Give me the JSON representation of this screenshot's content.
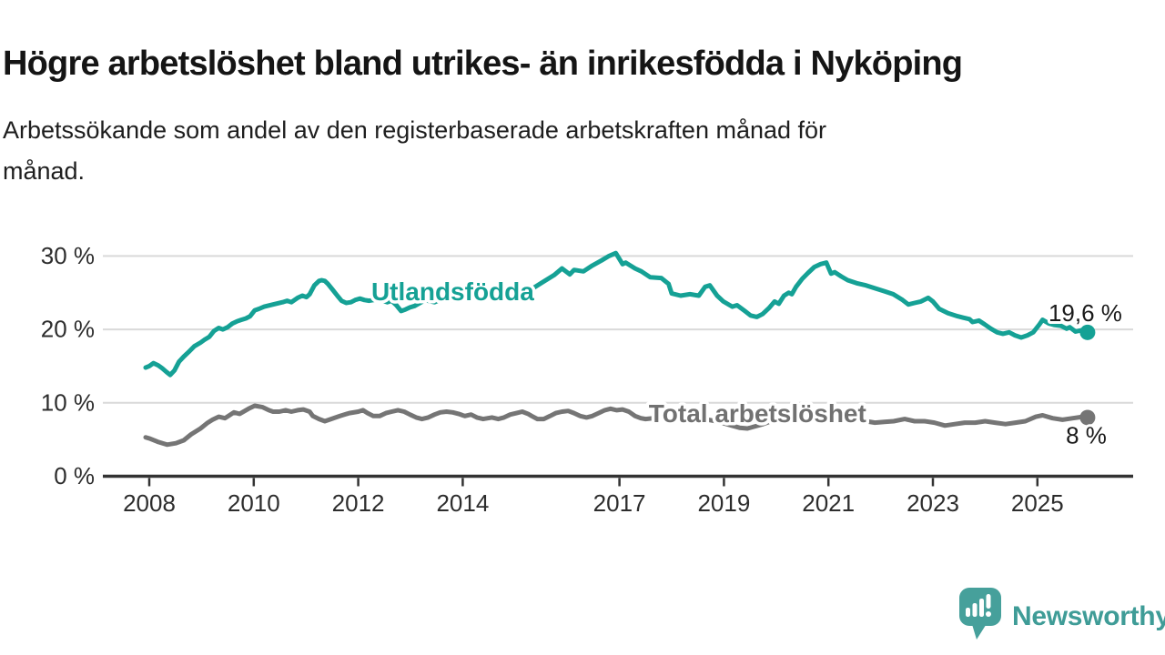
{
  "title": "Högre arbetslöshet bland utrikes- än inrikesfödda i Nyköping",
  "subtitle_lines": [
    "Arbetssökande som andel av den registerbaserade arbetskraften månad för",
    "månad."
  ],
  "logo": {
    "text": "Newsworthy",
    "icon": "speech-bubble-bar-chart",
    "color": "#46a09b"
  },
  "colors": {
    "foreign_series": "#15a195",
    "total_series": "#757575",
    "total_label": "#717171",
    "grid": "#d9d9d9",
    "axis": "#333333",
    "tick_text": "#2d2d2d",
    "annotation_text": "#1a1a1a",
    "background": "#ffffff"
  },
  "chart_data": {
    "type": "line",
    "unit": "%",
    "grid": "horizontal",
    "legend_position": "inline-labels",
    "xlim": [
      2007.1,
      2026.9
    ],
    "ylim": [
      0,
      31
    ],
    "x_ticks": [
      {
        "label": "2008",
        "value": 2008
      },
      {
        "label": "2010",
        "value": 2010
      },
      {
        "label": "2012",
        "value": 2012
      },
      {
        "label": "2014",
        "value": 2014
      },
      {
        "label": "2017",
        "value": 2017
      },
      {
        "label": "2019",
        "value": 2019
      },
      {
        "label": "2021",
        "value": 2021
      },
      {
        "label": "2023",
        "value": 2023
      },
      {
        "label": "2025",
        "value": 2025
      }
    ],
    "y_ticks": [
      {
        "label": "0 %",
        "value": 0
      },
      {
        "label": "10 %",
        "value": 10
      },
      {
        "label": "20 %",
        "value": 20
      },
      {
        "label": "30 %",
        "value": 30
      }
    ],
    "series": [
      {
        "name": "Utlandsfödda",
        "color": "#15a195",
        "end_label": "19,6 %",
        "label_pos": [
          2012.25,
          24.0
        ],
        "points": [
          [
            2007.93,
            14.8
          ],
          [
            2008.0,
            15.0
          ],
          [
            2008.08,
            15.4
          ],
          [
            2008.17,
            15.1
          ],
          [
            2008.25,
            14.7
          ],
          [
            2008.33,
            14.2
          ],
          [
            2008.4,
            13.8
          ],
          [
            2008.48,
            14.4
          ],
          [
            2008.57,
            15.6
          ],
          [
            2008.66,
            16.3
          ],
          [
            2008.75,
            16.9
          ],
          [
            2008.86,
            17.7
          ],
          [
            2008.98,
            18.2
          ],
          [
            2009.06,
            18.6
          ],
          [
            2009.15,
            19.0
          ],
          [
            2009.24,
            19.8
          ],
          [
            2009.33,
            20.2
          ],
          [
            2009.41,
            20.0
          ],
          [
            2009.5,
            20.3
          ],
          [
            2009.59,
            20.8
          ],
          [
            2009.68,
            21.1
          ],
          [
            2009.76,
            21.3
          ],
          [
            2009.85,
            21.5
          ],
          [
            2009.93,
            21.8
          ],
          [
            2010.02,
            22.6
          ],
          [
            2010.1,
            22.8
          ],
          [
            2010.2,
            23.1
          ],
          [
            2010.37,
            23.4
          ],
          [
            2010.55,
            23.7
          ],
          [
            2010.64,
            23.9
          ],
          [
            2010.72,
            23.7
          ],
          [
            2010.84,
            24.3
          ],
          [
            2010.93,
            24.6
          ],
          [
            2011.01,
            24.4
          ],
          [
            2011.07,
            24.8
          ],
          [
            2011.16,
            26.0
          ],
          [
            2011.25,
            26.6
          ],
          [
            2011.3,
            26.7
          ],
          [
            2011.36,
            26.6
          ],
          [
            2011.42,
            26.2
          ],
          [
            2011.51,
            25.4
          ],
          [
            2011.6,
            24.6
          ],
          [
            2011.68,
            23.9
          ],
          [
            2011.77,
            23.6
          ],
          [
            2011.86,
            23.7
          ],
          [
            2011.94,
            24.0
          ],
          [
            2012.03,
            24.2
          ],
          [
            2012.12,
            24.0
          ],
          [
            2012.21,
            23.9
          ],
          [
            2012.29,
            24.0
          ],
          [
            2012.38,
            24.2
          ],
          [
            2012.47,
            23.9
          ],
          [
            2012.56,
            23.7
          ],
          [
            2012.64,
            23.9
          ],
          [
            2012.73,
            23.3
          ],
          [
            2012.82,
            22.5
          ],
          [
            2012.9,
            22.7
          ],
          [
            2012.99,
            23.0
          ],
          [
            2013.08,
            23.2
          ],
          [
            2013.28,
            24.0
          ],
          [
            2013.46,
            23.7
          ],
          [
            2013.63,
            24.2
          ],
          [
            2013.81,
            24.0
          ],
          [
            2013.98,
            24.4
          ],
          [
            2014.16,
            24.2
          ],
          [
            2014.33,
            24.6
          ],
          [
            2014.51,
            24.4
          ],
          [
            2014.7,
            24.8
          ],
          [
            2014.9,
            25.2
          ],
          [
            2015.1,
            25.6
          ],
          [
            2015.3,
            25.4
          ],
          [
            2015.5,
            26.3
          ],
          [
            2015.75,
            27.4
          ],
          [
            2015.9,
            28.3
          ],
          [
            2016.05,
            27.5
          ],
          [
            2016.13,
            28.1
          ],
          [
            2016.31,
            27.9
          ],
          [
            2016.48,
            28.7
          ],
          [
            2016.66,
            29.4
          ],
          [
            2016.8,
            30.0
          ],
          [
            2016.93,
            30.4
          ],
          [
            2017.06,
            28.9
          ],
          [
            2017.12,
            29.1
          ],
          [
            2017.3,
            28.3
          ],
          [
            2017.42,
            27.9
          ],
          [
            2017.59,
            27.1
          ],
          [
            2017.8,
            27.0
          ],
          [
            2017.94,
            26.2
          ],
          [
            2018.0,
            24.9
          ],
          [
            2018.17,
            24.6
          ],
          [
            2018.35,
            24.8
          ],
          [
            2018.52,
            24.6
          ],
          [
            2018.64,
            25.8
          ],
          [
            2018.73,
            26.0
          ],
          [
            2018.87,
            24.6
          ],
          [
            2018.99,
            23.8
          ],
          [
            2019.16,
            23.1
          ],
          [
            2019.25,
            23.3
          ],
          [
            2019.4,
            22.5
          ],
          [
            2019.51,
            21.9
          ],
          [
            2019.63,
            21.7
          ],
          [
            2019.74,
            22.1
          ],
          [
            2019.86,
            22.9
          ],
          [
            2019.97,
            23.8
          ],
          [
            2020.05,
            23.5
          ],
          [
            2020.15,
            24.6
          ],
          [
            2020.24,
            25.0
          ],
          [
            2020.3,
            24.8
          ],
          [
            2020.38,
            25.8
          ],
          [
            2020.5,
            26.9
          ],
          [
            2020.61,
            27.7
          ],
          [
            2020.73,
            28.5
          ],
          [
            2020.85,
            28.9
          ],
          [
            2020.96,
            29.1
          ],
          [
            2021.05,
            27.6
          ],
          [
            2021.12,
            27.8
          ],
          [
            2021.25,
            27.2
          ],
          [
            2021.37,
            26.7
          ],
          [
            2021.54,
            26.3
          ],
          [
            2021.72,
            26.0
          ],
          [
            2021.89,
            25.6
          ],
          [
            2022.07,
            25.2
          ],
          [
            2022.24,
            24.8
          ],
          [
            2022.42,
            24.0
          ],
          [
            2022.53,
            23.4
          ],
          [
            2022.65,
            23.6
          ],
          [
            2022.77,
            23.8
          ],
          [
            2022.91,
            24.3
          ],
          [
            2023.0,
            23.8
          ],
          [
            2023.12,
            22.8
          ],
          [
            2023.29,
            22.2
          ],
          [
            2023.47,
            21.8
          ],
          [
            2023.58,
            21.6
          ],
          [
            2023.7,
            21.4
          ],
          [
            2023.76,
            21.0
          ],
          [
            2023.88,
            21.2
          ],
          [
            2023.99,
            20.7
          ],
          [
            2024.11,
            20.1
          ],
          [
            2024.23,
            19.6
          ],
          [
            2024.34,
            19.4
          ],
          [
            2024.46,
            19.6
          ],
          [
            2024.57,
            19.2
          ],
          [
            2024.69,
            18.9
          ],
          [
            2024.81,
            19.2
          ],
          [
            2024.92,
            19.6
          ],
          [
            2025.04,
            20.7
          ],
          [
            2025.1,
            21.3
          ],
          [
            2025.22,
            20.8
          ],
          [
            2025.33,
            20.6
          ],
          [
            2025.45,
            20.5
          ],
          [
            2025.56,
            20.1
          ],
          [
            2025.62,
            20.3
          ],
          [
            2025.73,
            19.7
          ],
          [
            2025.85,
            19.9
          ],
          [
            2025.96,
            19.6
          ]
        ]
      },
      {
        "name": "Total arbetslöshet",
        "color": "#757575",
        "label_color": "#717171",
        "end_label": "8 %",
        "label_pos": [
          2017.56,
          7.37
        ],
        "points": [
          [
            2007.93,
            5.3
          ],
          [
            2008.02,
            5.1
          ],
          [
            2008.16,
            4.7
          ],
          [
            2008.34,
            4.3
          ],
          [
            2008.51,
            4.5
          ],
          [
            2008.66,
            4.9
          ],
          [
            2008.8,
            5.7
          ],
          [
            2008.98,
            6.5
          ],
          [
            2009.12,
            7.3
          ],
          [
            2009.21,
            7.7
          ],
          [
            2009.33,
            8.1
          ],
          [
            2009.45,
            7.9
          ],
          [
            2009.62,
            8.7
          ],
          [
            2009.73,
            8.5
          ],
          [
            2009.9,
            9.2
          ],
          [
            2010.02,
            9.6
          ],
          [
            2010.17,
            9.4
          ],
          [
            2010.29,
            9.0
          ],
          [
            2010.37,
            8.8
          ],
          [
            2010.49,
            8.8
          ],
          [
            2010.61,
            9.0
          ],
          [
            2010.72,
            8.8
          ],
          [
            2010.84,
            9.0
          ],
          [
            2010.95,
            9.1
          ],
          [
            2011.07,
            8.8
          ],
          [
            2011.13,
            8.2
          ],
          [
            2011.25,
            7.8
          ],
          [
            2011.36,
            7.5
          ],
          [
            2011.48,
            7.8
          ],
          [
            2011.65,
            8.2
          ],
          [
            2011.83,
            8.6
          ],
          [
            2012.0,
            8.8
          ],
          [
            2012.09,
            9.0
          ],
          [
            2012.18,
            8.6
          ],
          [
            2012.29,
            8.2
          ],
          [
            2012.41,
            8.2
          ],
          [
            2012.53,
            8.6
          ],
          [
            2012.64,
            8.8
          ],
          [
            2012.76,
            9.0
          ],
          [
            2012.88,
            8.8
          ],
          [
            2012.99,
            8.4
          ],
          [
            2013.11,
            8.0
          ],
          [
            2013.22,
            7.8
          ],
          [
            2013.34,
            8.0
          ],
          [
            2013.46,
            8.4
          ],
          [
            2013.57,
            8.7
          ],
          [
            2013.69,
            8.8
          ],
          [
            2013.81,
            8.7
          ],
          [
            2013.92,
            8.5
          ],
          [
            2014.04,
            8.2
          ],
          [
            2014.16,
            8.4
          ],
          [
            2014.27,
            8.0
          ],
          [
            2014.39,
            7.8
          ],
          [
            2014.56,
            8.0
          ],
          [
            2014.68,
            7.8
          ],
          [
            2014.79,
            8.0
          ],
          [
            2014.91,
            8.4
          ],
          [
            2015.03,
            8.6
          ],
          [
            2015.14,
            8.8
          ],
          [
            2015.25,
            8.5
          ],
          [
            2015.32,
            8.2
          ],
          [
            2015.43,
            7.8
          ],
          [
            2015.55,
            7.8
          ],
          [
            2015.67,
            8.2
          ],
          [
            2015.78,
            8.6
          ],
          [
            2015.9,
            8.8
          ],
          [
            2016.02,
            8.9
          ],
          [
            2016.13,
            8.6
          ],
          [
            2016.25,
            8.2
          ],
          [
            2016.37,
            8.0
          ],
          [
            2016.48,
            8.2
          ],
          [
            2016.6,
            8.6
          ],
          [
            2016.72,
            9.0
          ],
          [
            2016.83,
            9.2
          ],
          [
            2016.95,
            9.0
          ],
          [
            2017.06,
            9.1
          ],
          [
            2017.18,
            8.8
          ],
          [
            2017.3,
            8.2
          ],
          [
            2017.41,
            7.9
          ],
          [
            2017.5,
            7.8
          ],
          [
            2017.65,
            7.9
          ],
          [
            2017.8,
            8.1
          ],
          [
            2017.95,
            8.3
          ],
          [
            2018.1,
            8.4
          ],
          [
            2018.25,
            8.3
          ],
          [
            2018.4,
            8.1
          ],
          [
            2018.55,
            7.9
          ],
          [
            2018.7,
            7.7
          ],
          [
            2018.85,
            7.5
          ],
          [
            2019.0,
            7.2
          ],
          [
            2019.15,
            6.9
          ],
          [
            2019.3,
            6.6
          ],
          [
            2019.45,
            6.5
          ],
          [
            2019.6,
            6.8
          ],
          [
            2019.75,
            7.1
          ],
          [
            2019.9,
            7.5
          ],
          [
            2020.05,
            7.9
          ],
          [
            2020.2,
            8.3
          ],
          [
            2020.35,
            8.6
          ],
          [
            2020.5,
            8.5
          ],
          [
            2020.65,
            8.4
          ],
          [
            2020.8,
            8.2
          ],
          [
            2020.95,
            8.0
          ],
          [
            2021.1,
            7.8
          ],
          [
            2021.34,
            7.5
          ],
          [
            2021.54,
            7.8
          ],
          [
            2021.72,
            7.5
          ],
          [
            2021.89,
            7.3
          ],
          [
            2022.07,
            7.4
          ],
          [
            2022.25,
            7.5
          ],
          [
            2022.46,
            7.8
          ],
          [
            2022.65,
            7.5
          ],
          [
            2022.84,
            7.5
          ],
          [
            2023.03,
            7.3
          ],
          [
            2023.23,
            6.9
          ],
          [
            2023.42,
            7.1
          ],
          [
            2023.61,
            7.3
          ],
          [
            2023.81,
            7.3
          ],
          [
            2024.0,
            7.5
          ],
          [
            2024.19,
            7.3
          ],
          [
            2024.39,
            7.1
          ],
          [
            2024.58,
            7.3
          ],
          [
            2024.77,
            7.5
          ],
          [
            2024.97,
            8.1
          ],
          [
            2025.1,
            8.3
          ],
          [
            2025.29,
            7.9
          ],
          [
            2025.48,
            7.7
          ],
          [
            2025.68,
            7.9
          ],
          [
            2025.87,
            8.1
          ],
          [
            2025.96,
            8.0
          ]
        ]
      }
    ]
  }
}
